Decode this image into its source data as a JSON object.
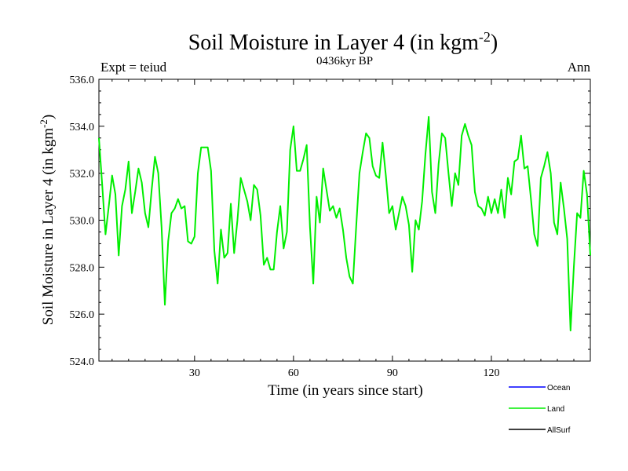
{
  "chart_data": {
    "type": "line",
    "title": "Soil Moisture in Layer 4 (in kgm",
    "title_superscript": "-2",
    "title_close": ")",
    "subtitle_left": "Expt = teiud",
    "subtitle_center": "0436kyr BP",
    "subtitle_right": "Ann",
    "xlabel": "Time (in years since start)",
    "ylabel": "Soil Moisture in Layer 4 (in kgm",
    "ylabel_superscript": "-2",
    "ylabel_close": ")",
    "xlim": [
      1,
      150
    ],
    "ylim": [
      524.0,
      536.0
    ],
    "xticks": [
      30,
      60,
      90,
      120
    ],
    "yticks": [
      524.0,
      526.0,
      528.0,
      530.0,
      532.0,
      534.0,
      536.0
    ],
    "legend_position": "bottom-right",
    "series": [
      {
        "name": "Ocean",
        "color": "#0000ff",
        "values": []
      },
      {
        "name": "Land",
        "color": "#00ee00",
        "values": [
          533.5,
          531.5,
          529.4,
          530.6,
          531.9,
          531.1,
          528.5,
          530.6,
          531.3,
          532.5,
          530.3,
          531.2,
          532.2,
          531.6,
          530.3,
          529.7,
          531.3,
          532.7,
          532.0,
          529.7,
          526.4,
          529.1,
          530.3,
          530.5,
          530.9,
          530.5,
          530.6,
          529.1,
          529.0,
          529.3,
          532.0,
          533.1,
          533.1,
          533.1,
          532.1,
          528.7,
          527.3,
          529.6,
          528.4,
          528.6,
          530.7,
          528.6,
          530.0,
          531.8,
          531.3,
          530.8,
          530.0,
          531.5,
          531.3,
          530.2,
          528.1,
          528.4,
          527.9,
          527.9,
          529.5,
          530.6,
          528.8,
          529.5,
          533.0,
          534.0,
          532.1,
          532.1,
          532.6,
          533.2,
          529.7,
          527.3,
          531.0,
          529.9,
          532.2,
          531.3,
          530.4,
          530.6,
          530.1,
          530.5,
          529.6,
          528.4,
          527.6,
          527.3,
          529.7,
          532.0,
          532.9,
          533.7,
          533.5,
          532.3,
          531.9,
          531.8,
          533.3,
          531.9,
          530.3,
          530.6,
          529.6,
          530.3,
          531.0,
          530.6,
          529.8,
          527.8,
          530.0,
          529.6,
          530.8,
          532.8,
          534.4,
          531.2,
          530.3,
          532.4,
          533.7,
          533.5,
          532.0,
          530.6,
          532.0,
          531.5,
          533.6,
          534.1,
          533.6,
          533.2,
          531.2,
          530.6,
          530.5,
          530.2,
          531.0,
          530.3,
          530.9,
          530.3,
          531.3,
          530.1,
          531.8,
          531.1,
          532.5,
          532.6,
          533.6,
          532.2,
          532.3,
          530.9,
          529.4,
          528.9,
          531.8,
          532.3,
          532.9,
          532.0,
          529.9,
          529.4,
          531.6,
          530.5,
          529.2,
          525.3,
          528.0,
          530.3,
          530.1,
          532.1,
          531.1,
          528.5
        ]
      },
      {
        "name": "AllSurf",
        "color": "#000000",
        "values": []
      }
    ]
  }
}
